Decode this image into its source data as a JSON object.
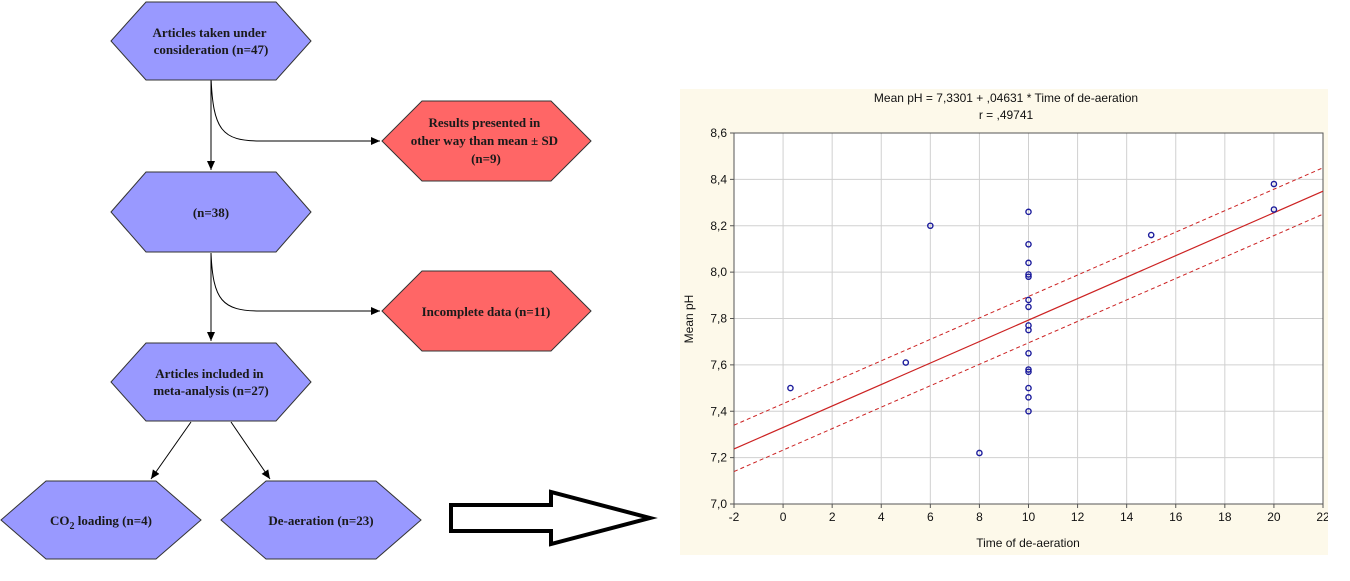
{
  "flowchart": {
    "nodes": [
      {
        "id": "articles",
        "lines": [
          "Articles taken under",
          "consideration (n=47)"
        ],
        "fill": "#9999ff"
      },
      {
        "id": "excluded-sd",
        "lines": [
          "Results presented in",
          "other way than mean ± SD",
          "(n=9)"
        ],
        "fill": "#ff6666"
      },
      {
        "id": "n38",
        "lines": [
          "(n=38)"
        ],
        "fill": "#9999ff"
      },
      {
        "id": "incomplete",
        "lines": [
          "Incomplete data (n=11)"
        ],
        "fill": "#ff6666"
      },
      {
        "id": "included",
        "lines": [
          "Articles included in",
          "meta-analysis (n=27)"
        ],
        "fill": "#9999ff"
      },
      {
        "id": "co2",
        "lines": [
          "CO",
          "2",
          " loading (n=4)"
        ],
        "fill": "#9999ff"
      },
      {
        "id": "deaeration",
        "lines": [
          "De-aeration (n=23)"
        ],
        "fill": "#9999ff"
      }
    ]
  },
  "chart_data": {
    "type": "scatter",
    "title": "Mean pH = 7,3301 + ,04631 * Time of de-aeration",
    "subtitle": "r =    ,49741",
    "xlabel": "Time of de-aeration",
    "ylabel": "Mean pH",
    "xlim": [
      -2,
      22
    ],
    "ylim": [
      7.0,
      8.6
    ],
    "xticks": [
      -2,
      0,
      2,
      4,
      6,
      8,
      10,
      12,
      14,
      16,
      18,
      20,
      22
    ],
    "xtick_labels": [
      "-2",
      "0",
      "2",
      "4",
      "6",
      "8",
      "10",
      "12",
      "14",
      "16",
      "18",
      "20",
      "22"
    ],
    "yticks": [
      7.0,
      7.2,
      7.4,
      7.6,
      7.8,
      8.0,
      8.2,
      8.4,
      8.6
    ],
    "ytick_labels": [
      "7,0",
      "7,2",
      "7,4",
      "7,6",
      "7,8",
      "8,0",
      "8,2",
      "8,4",
      "8,6"
    ],
    "grid": true,
    "fit": {
      "intercept": 7.3301,
      "slope": 0.04631
    },
    "confidence_band": {
      "at_xmin": [
        7.14,
        7.34
      ],
      "at_xmax": [
        8.25,
        8.45
      ]
    },
    "points": [
      {
        "x": 0.3,
        "y": 7.5
      },
      {
        "x": 5,
        "y": 7.61
      },
      {
        "x": 6,
        "y": 8.2
      },
      {
        "x": 8,
        "y": 7.22
      },
      {
        "x": 10,
        "y": 8.26
      },
      {
        "x": 10,
        "y": 8.12
      },
      {
        "x": 10,
        "y": 8.04
      },
      {
        "x": 10,
        "y": 7.99
      },
      {
        "x": 10,
        "y": 7.98
      },
      {
        "x": 10,
        "y": 7.88
      },
      {
        "x": 10,
        "y": 7.85
      },
      {
        "x": 10,
        "y": 7.77
      },
      {
        "x": 10,
        "y": 7.75
      },
      {
        "x": 10,
        "y": 7.65
      },
      {
        "x": 10,
        "y": 7.58
      },
      {
        "x": 10,
        "y": 7.57
      },
      {
        "x": 10,
        "y": 7.5
      },
      {
        "x": 10,
        "y": 7.46
      },
      {
        "x": 10,
        "y": 7.4
      },
      {
        "x": 15,
        "y": 8.16
      },
      {
        "x": 20,
        "y": 8.38
      },
      {
        "x": 20,
        "y": 8.27
      }
    ],
    "colors": {
      "points": "#1c1c9c",
      "fit": "#cc2222",
      "grid": "#d0d0d0",
      "panel": "#fdf9ea"
    }
  }
}
